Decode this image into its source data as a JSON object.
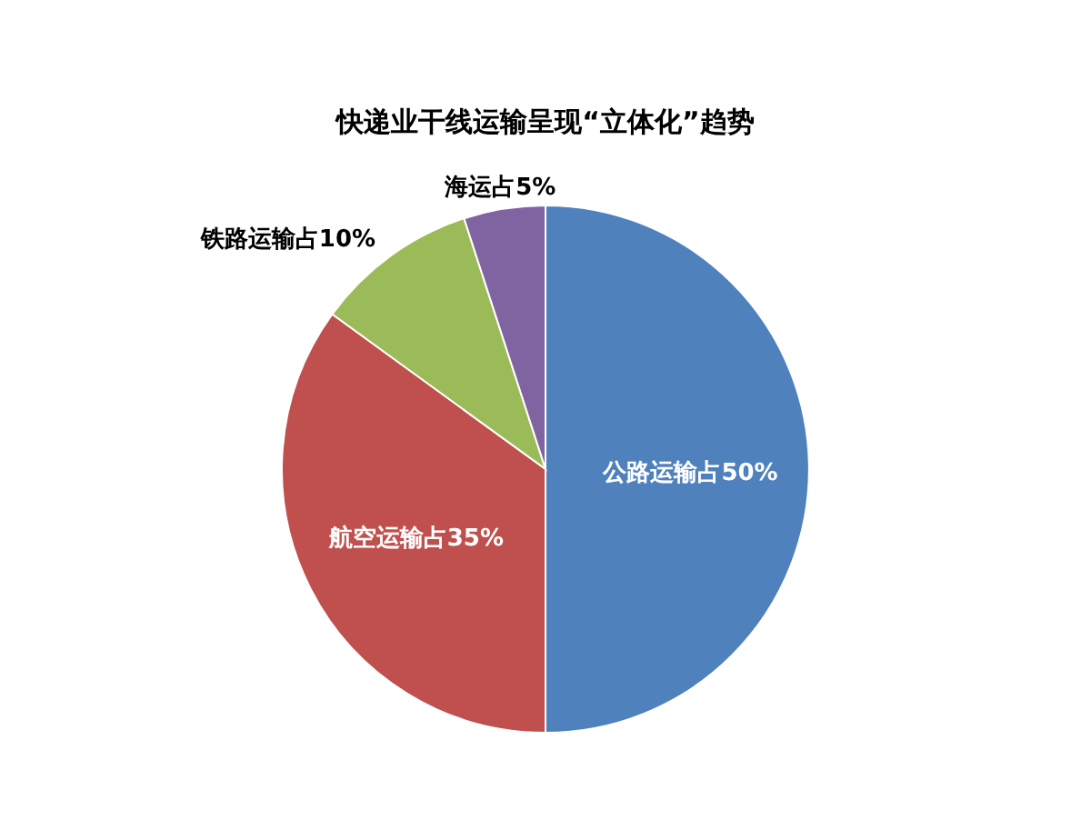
{
  "chart_data": {
    "type": "pie",
    "title": "快递业干线运输呈现“立体化”趋势",
    "categories": [
      "公路运输占50%",
      "航空运输占35%",
      "铁路运输占10%",
      "海运占5%"
    ],
    "values": [
      50,
      35,
      10,
      5
    ],
    "colors": [
      "#4f81bd",
      "#c0504d",
      "#9bbb59",
      "#8064a2"
    ]
  }
}
